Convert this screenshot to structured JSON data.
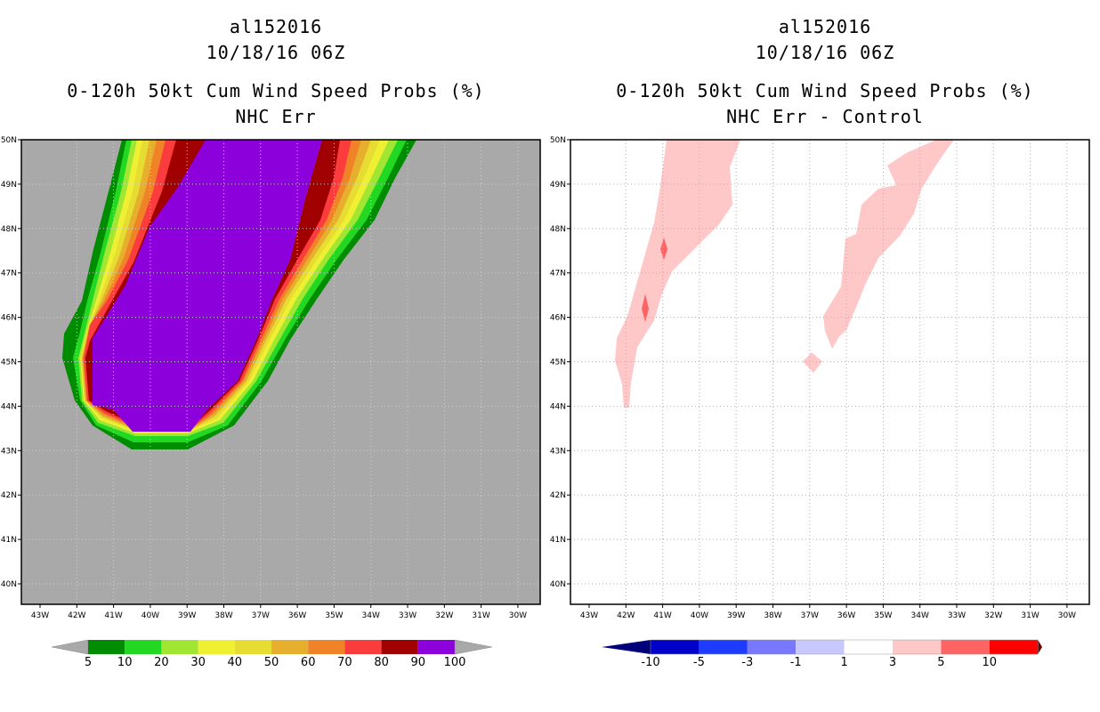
{
  "left_panel": {
    "title_lines": [
      "al152016",
      "10/18/16 06Z",
      "0-120h 50kt Cum Wind Speed Probs (%)",
      "NHC Err"
    ],
    "background_color": "#a9a9a9",
    "colorbar_labels": [
      "5",
      "10",
      "20",
      "30",
      "40",
      "50",
      "60",
      "70",
      "80",
      "90",
      "100"
    ],
    "colorbar_colors": [
      "#008c00",
      "#22d822",
      "#a0e632",
      "#f0f032",
      "#e6dc32",
      "#e6af2d",
      "#f08228",
      "#fa3c3c",
      "#a00000",
      "#8c00dc"
    ]
  },
  "right_panel": {
    "title_lines": [
      "al152016",
      "10/18/16 06Z",
      "0-120h 50kt Cum Wind Speed Probs (%)",
      "NHC Err - Control"
    ],
    "background_color": "#ffffff",
    "colorbar_labels": [
      "-10",
      "-5",
      "-3",
      "-1",
      "1",
      "3",
      "5",
      "10"
    ],
    "colorbar_colors": [
      "#0000c8",
      "#1e3cff",
      "#7878ff",
      "#c8c8ff",
      "#ffffff",
      "#ffc8c8",
      "#ff6464",
      "#ff0000"
    ],
    "colorbar_end_colors": [
      "#00007a",
      "#6e0000"
    ]
  },
  "axes": {
    "lon_labels": [
      "43W",
      "42W",
      "41W",
      "40W",
      "39W",
      "38W",
      "37W",
      "36W",
      "35W",
      "34W",
      "33W",
      "32W",
      "31W",
      "30W"
    ],
    "lat_labels": [
      "50N",
      "49N",
      "48N",
      "47N",
      "46N",
      "45N",
      "44N",
      "43N",
      "42N",
      "41N",
      "40N"
    ]
  }
}
